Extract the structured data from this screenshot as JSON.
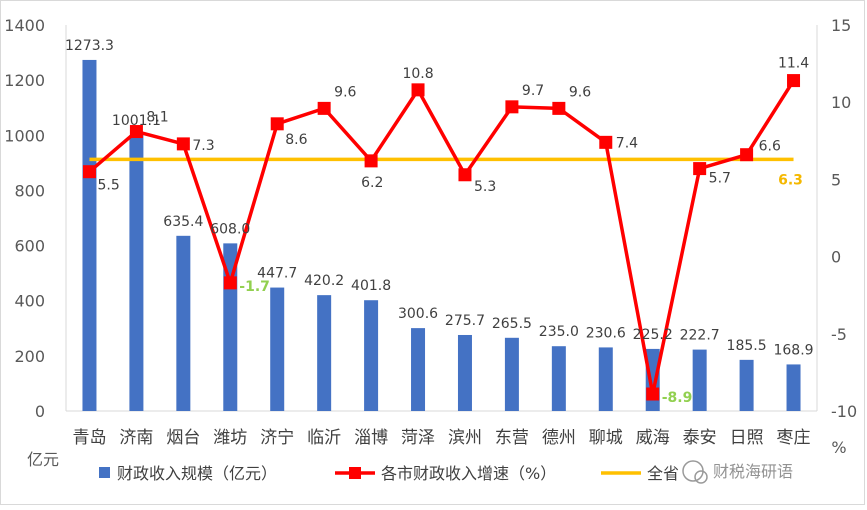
{
  "chart_data": {
    "type": "bar",
    "categories": [
      "青岛",
      "济南",
      "烟台",
      "潍坊",
      "济宁",
      "临沂",
      "淄博",
      "菏泽",
      "滨州",
      "东营",
      "德州",
      "聊城",
      "威海",
      "泰安",
      "日照",
      "枣庄"
    ],
    "series": [
      {
        "name": "财政收入规模（亿元）",
        "type": "bar",
        "axis": "left",
        "color": "#4472C4",
        "values": [
          1273.3,
          1001.1,
          635.4,
          608.0,
          447.7,
          420.2,
          401.8,
          300.6,
          275.7,
          265.5,
          235.0,
          230.6,
          225.2,
          222.7,
          185.5,
          168.9
        ],
        "labels": [
          "1273.3",
          "1001.1",
          "635.4",
          "608.0",
          "447.7",
          "420.2",
          "401.8",
          "300.6",
          "275.7",
          "265.5",
          "235.0",
          "230.6",
          "225.2",
          "222.7",
          "185.5",
          "168.9"
        ]
      },
      {
        "name": "各市财政收入增速（%）",
        "type": "line",
        "axis": "right",
        "color": "#FF0000",
        "values": [
          5.5,
          8.1,
          7.3,
          -1.7,
          8.6,
          9.6,
          6.2,
          10.8,
          5.3,
          9.7,
          9.6,
          7.4,
          -8.9,
          5.7,
          6.6,
          11.4
        ],
        "labels": [
          "5.5",
          "8.1",
          "7.3",
          "-1.7",
          "8.6",
          "9.6",
          "6.2",
          "10.8",
          "5.3",
          "9.7",
          "9.6",
          "7.4",
          "-8.9",
          "5.7",
          "6.6",
          "11.4"
        ]
      },
      {
        "name": "全省",
        "type": "line",
        "axis": "right",
        "color": "#FFC000",
        "values": [
          6.3,
          6.3,
          6.3,
          6.3,
          6.3,
          6.3,
          6.3,
          6.3,
          6.3,
          6.3,
          6.3,
          6.3,
          6.3,
          6.3,
          6.3,
          6.3
        ],
        "label": "6.3"
      }
    ],
    "y_left": {
      "ylim": [
        0,
        1400
      ],
      "ticks": [
        "0",
        "200",
        "400",
        "600",
        "800",
        "1000",
        "1200",
        "1400"
      ],
      "unit": "亿元"
    },
    "y_right": {
      "ylim": [
        -10,
        15
      ],
      "ticks": [
        "-10",
        "-5",
        "0",
        "5",
        "10",
        "15"
      ],
      "unit": "%"
    },
    "grid": false,
    "legend": "bottom"
  },
  "legend_items": [
    "财政收入规模（亿元）",
    "各市财政收入增速（%）",
    "全省"
  ],
  "watermark": "财税海研语",
  "colors": {
    "bar": "#4472C4",
    "city_line": "#FF0000",
    "province_line": "#FFC000",
    "negative_label": "#92D050",
    "province_label": "#F5B800",
    "axis": "#d9d9d9"
  }
}
